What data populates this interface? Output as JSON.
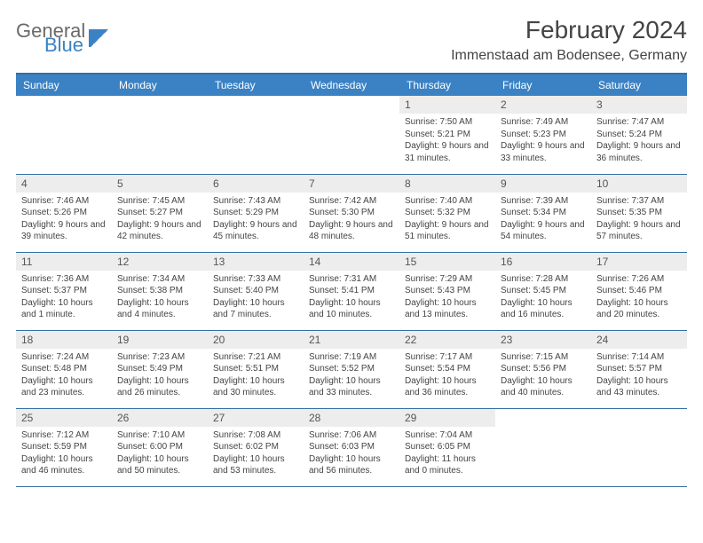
{
  "logo": {
    "text1": "General",
    "text2": "Blue"
  },
  "title": "February 2024",
  "location": "Immenstaad am Bodensee, Germany",
  "colors": {
    "header_bg": "#3b82c4",
    "header_border": "#356fa3",
    "daynum_bg": "#ededed",
    "text": "#444444"
  },
  "weekdays": [
    "Sunday",
    "Monday",
    "Tuesday",
    "Wednesday",
    "Thursday",
    "Friday",
    "Saturday"
  ],
  "weeks": [
    [
      {
        "blank": true
      },
      {
        "blank": true
      },
      {
        "blank": true
      },
      {
        "blank": true
      },
      {
        "day": "1",
        "sunrise": "Sunrise: 7:50 AM",
        "sunset": "Sunset: 5:21 PM",
        "daylight": "Daylight: 9 hours and 31 minutes."
      },
      {
        "day": "2",
        "sunrise": "Sunrise: 7:49 AM",
        "sunset": "Sunset: 5:23 PM",
        "daylight": "Daylight: 9 hours and 33 minutes."
      },
      {
        "day": "3",
        "sunrise": "Sunrise: 7:47 AM",
        "sunset": "Sunset: 5:24 PM",
        "daylight": "Daylight: 9 hours and 36 minutes."
      }
    ],
    [
      {
        "day": "4",
        "sunrise": "Sunrise: 7:46 AM",
        "sunset": "Sunset: 5:26 PM",
        "daylight": "Daylight: 9 hours and 39 minutes."
      },
      {
        "day": "5",
        "sunrise": "Sunrise: 7:45 AM",
        "sunset": "Sunset: 5:27 PM",
        "daylight": "Daylight: 9 hours and 42 minutes."
      },
      {
        "day": "6",
        "sunrise": "Sunrise: 7:43 AM",
        "sunset": "Sunset: 5:29 PM",
        "daylight": "Daylight: 9 hours and 45 minutes."
      },
      {
        "day": "7",
        "sunrise": "Sunrise: 7:42 AM",
        "sunset": "Sunset: 5:30 PM",
        "daylight": "Daylight: 9 hours and 48 minutes."
      },
      {
        "day": "8",
        "sunrise": "Sunrise: 7:40 AM",
        "sunset": "Sunset: 5:32 PM",
        "daylight": "Daylight: 9 hours and 51 minutes."
      },
      {
        "day": "9",
        "sunrise": "Sunrise: 7:39 AM",
        "sunset": "Sunset: 5:34 PM",
        "daylight": "Daylight: 9 hours and 54 minutes."
      },
      {
        "day": "10",
        "sunrise": "Sunrise: 7:37 AM",
        "sunset": "Sunset: 5:35 PM",
        "daylight": "Daylight: 9 hours and 57 minutes."
      }
    ],
    [
      {
        "day": "11",
        "sunrise": "Sunrise: 7:36 AM",
        "sunset": "Sunset: 5:37 PM",
        "daylight": "Daylight: 10 hours and 1 minute."
      },
      {
        "day": "12",
        "sunrise": "Sunrise: 7:34 AM",
        "sunset": "Sunset: 5:38 PM",
        "daylight": "Daylight: 10 hours and 4 minutes."
      },
      {
        "day": "13",
        "sunrise": "Sunrise: 7:33 AM",
        "sunset": "Sunset: 5:40 PM",
        "daylight": "Daylight: 10 hours and 7 minutes."
      },
      {
        "day": "14",
        "sunrise": "Sunrise: 7:31 AM",
        "sunset": "Sunset: 5:41 PM",
        "daylight": "Daylight: 10 hours and 10 minutes."
      },
      {
        "day": "15",
        "sunrise": "Sunrise: 7:29 AM",
        "sunset": "Sunset: 5:43 PM",
        "daylight": "Daylight: 10 hours and 13 minutes."
      },
      {
        "day": "16",
        "sunrise": "Sunrise: 7:28 AM",
        "sunset": "Sunset: 5:45 PM",
        "daylight": "Daylight: 10 hours and 16 minutes."
      },
      {
        "day": "17",
        "sunrise": "Sunrise: 7:26 AM",
        "sunset": "Sunset: 5:46 PM",
        "daylight": "Daylight: 10 hours and 20 minutes."
      }
    ],
    [
      {
        "day": "18",
        "sunrise": "Sunrise: 7:24 AM",
        "sunset": "Sunset: 5:48 PM",
        "daylight": "Daylight: 10 hours and 23 minutes."
      },
      {
        "day": "19",
        "sunrise": "Sunrise: 7:23 AM",
        "sunset": "Sunset: 5:49 PM",
        "daylight": "Daylight: 10 hours and 26 minutes."
      },
      {
        "day": "20",
        "sunrise": "Sunrise: 7:21 AM",
        "sunset": "Sunset: 5:51 PM",
        "daylight": "Daylight: 10 hours and 30 minutes."
      },
      {
        "day": "21",
        "sunrise": "Sunrise: 7:19 AM",
        "sunset": "Sunset: 5:52 PM",
        "daylight": "Daylight: 10 hours and 33 minutes."
      },
      {
        "day": "22",
        "sunrise": "Sunrise: 7:17 AM",
        "sunset": "Sunset: 5:54 PM",
        "daylight": "Daylight: 10 hours and 36 minutes."
      },
      {
        "day": "23",
        "sunrise": "Sunrise: 7:15 AM",
        "sunset": "Sunset: 5:56 PM",
        "daylight": "Daylight: 10 hours and 40 minutes."
      },
      {
        "day": "24",
        "sunrise": "Sunrise: 7:14 AM",
        "sunset": "Sunset: 5:57 PM",
        "daylight": "Daylight: 10 hours and 43 minutes."
      }
    ],
    [
      {
        "day": "25",
        "sunrise": "Sunrise: 7:12 AM",
        "sunset": "Sunset: 5:59 PM",
        "daylight": "Daylight: 10 hours and 46 minutes."
      },
      {
        "day": "26",
        "sunrise": "Sunrise: 7:10 AM",
        "sunset": "Sunset: 6:00 PM",
        "daylight": "Daylight: 10 hours and 50 minutes."
      },
      {
        "day": "27",
        "sunrise": "Sunrise: 7:08 AM",
        "sunset": "Sunset: 6:02 PM",
        "daylight": "Daylight: 10 hours and 53 minutes."
      },
      {
        "day": "28",
        "sunrise": "Sunrise: 7:06 AM",
        "sunset": "Sunset: 6:03 PM",
        "daylight": "Daylight: 10 hours and 56 minutes."
      },
      {
        "day": "29",
        "sunrise": "Sunrise: 7:04 AM",
        "sunset": "Sunset: 6:05 PM",
        "daylight": "Daylight: 11 hours and 0 minutes."
      },
      {
        "blank": true
      },
      {
        "blank": true
      }
    ]
  ]
}
